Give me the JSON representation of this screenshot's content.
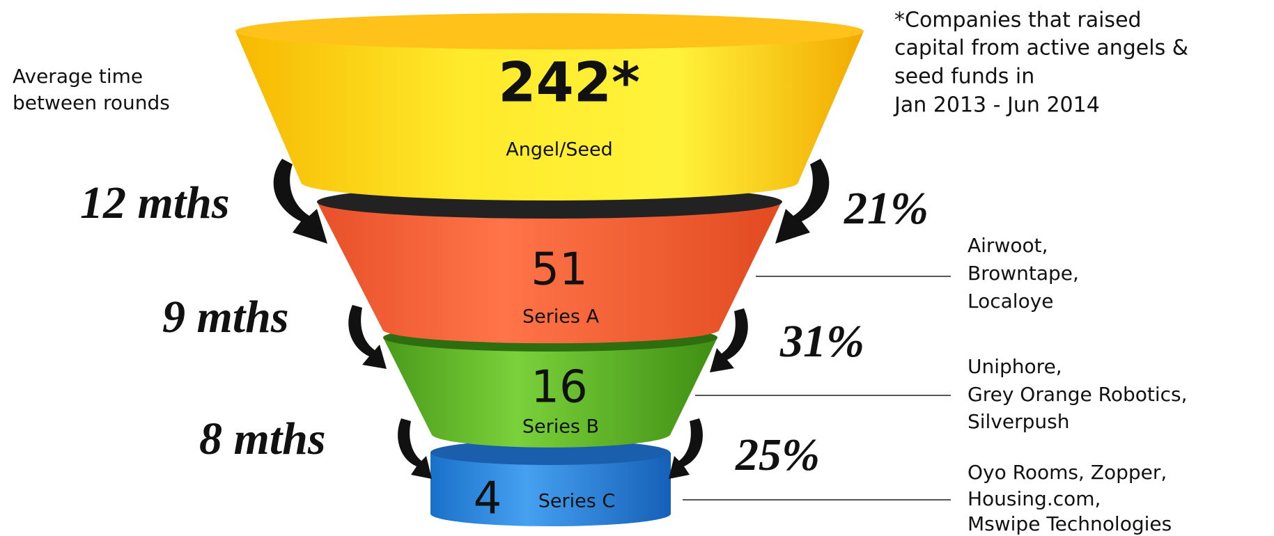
{
  "time_label": [
    "Average time",
    "between rounds"
  ],
  "note": [
    "*Companies that raised",
    "capital from active angels &",
    "seed funds in",
    "Jan 2013 - Jun 2014"
  ],
  "stages": [
    {
      "value": "242*",
      "label": "Angel/Seed"
    },
    {
      "value": "51",
      "label": "Series A",
      "companies": [
        "Airwoot,",
        "Browntape,",
        "Localoye"
      ]
    },
    {
      "value": "16",
      "label": "Series B",
      "companies": [
        "Uniphore,",
        "Grey Orange Robotics,",
        "Silverpush"
      ]
    },
    {
      "value": "4",
      "label": "Series C",
      "companies": [
        "Oyo Rooms, Zopper,",
        "Housing.com,",
        "Mswipe Technologies"
      ]
    }
  ],
  "transitions": [
    {
      "time": "12 mths",
      "rate": "21%"
    },
    {
      "time": "9 mths",
      "rate": "31%"
    },
    {
      "time": "8 mths",
      "rate": "25%"
    }
  ]
}
